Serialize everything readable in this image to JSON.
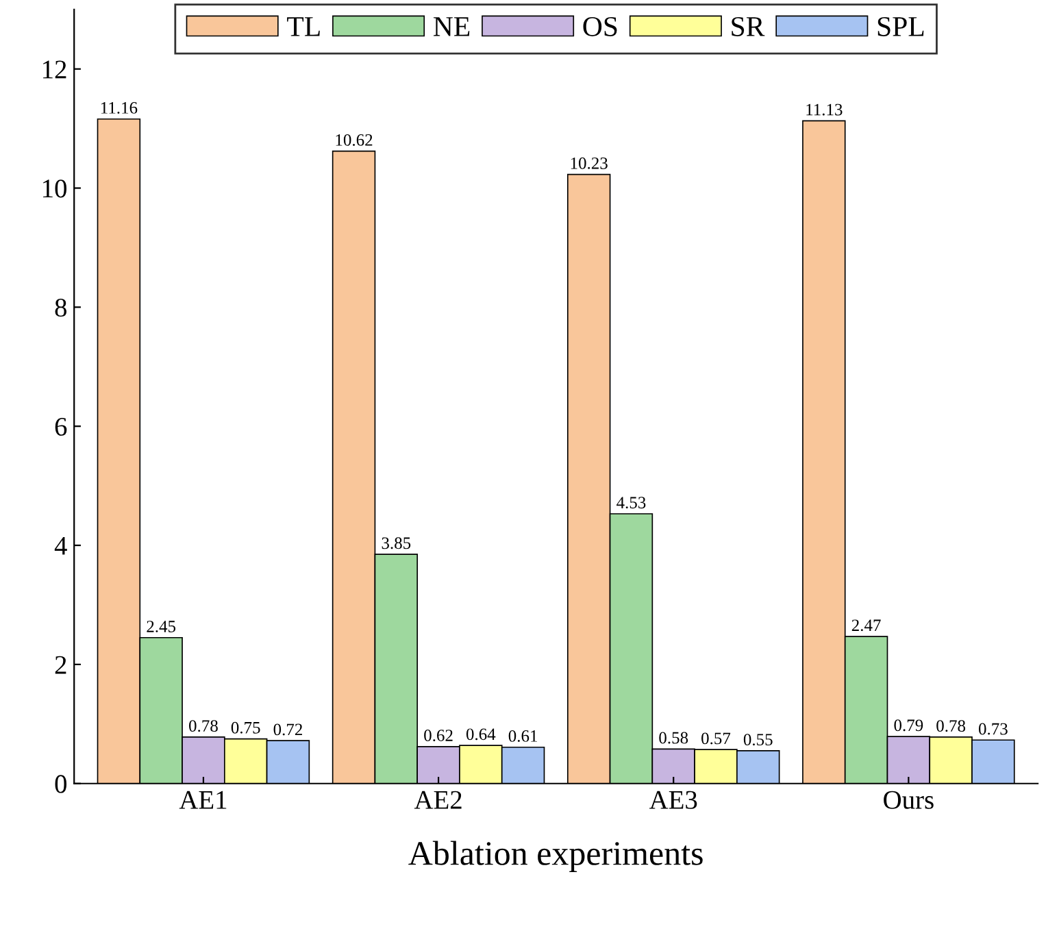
{
  "chart_data": {
    "type": "bar",
    "xlabel": "Ablation experiments",
    "categories": [
      "AE1",
      "AE2",
      "AE3",
      "Ours"
    ],
    "series": [
      {
        "name": "TL",
        "color": "#f9c69a",
        "values": [
          11.16,
          10.62,
          10.23,
          11.13
        ]
      },
      {
        "name": "NE",
        "color": "#9ed89e",
        "values": [
          2.45,
          3.85,
          4.53,
          2.47
        ]
      },
      {
        "name": "OS",
        "color": "#c7b5e0",
        "values": [
          0.78,
          0.62,
          0.58,
          0.79
        ]
      },
      {
        "name": "SR",
        "color": "#ffff99",
        "values": [
          0.75,
          0.64,
          0.57,
          0.78
        ]
      },
      {
        "name": "SPL",
        "color": "#a6c3f2",
        "values": [
          0.72,
          0.61,
          0.55,
          0.73
        ]
      }
    ],
    "ylim": [
      0,
      13
    ],
    "yticks": [
      0,
      2,
      4,
      6,
      8,
      10,
      12
    ],
    "data_labels": true,
    "legend": "top",
    "grid": false
  }
}
